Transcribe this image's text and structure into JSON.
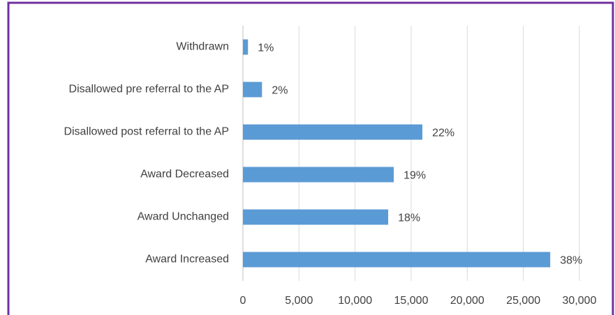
{
  "chart_data": {
    "type": "bar",
    "orientation": "horizontal",
    "categories": [
      "Withdrawn",
      "Disallowed pre referral to the AP",
      "Disallowed post referral to the AP",
      "Award Decreased",
      "Award Unchanged",
      "Award Increased"
    ],
    "values": [
      450,
      1700,
      16000,
      13450,
      12950,
      27400
    ],
    "value_labels": [
      "1%",
      "2%",
      "22%",
      "19%",
      "18%",
      "38%"
    ],
    "color": "#5b9bd5",
    "xlim": [
      0,
      30000
    ],
    "xticks": [
      0,
      {
        "value": 5000,
        "label": "5,000"
      },
      {
        "value": 10000,
        "label": "10,000"
      },
      {
        "value": 15000,
        "label": "15,000"
      },
      {
        "value": 20000,
        "label": "20,000"
      },
      {
        "value": 25000,
        "label": "25,000"
      },
      {
        "value": 30000,
        "label": "30,000"
      }
    ],
    "grid": true
  }
}
